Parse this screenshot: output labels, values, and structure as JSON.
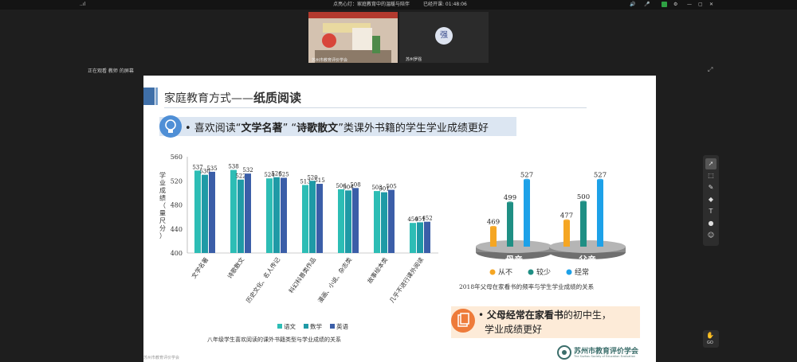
{
  "topbar": {
    "signal": "..ıl",
    "session_title": "点亮心灯：家庭教育中的温暖与陪伴",
    "elapsed_label": "已经开课: 01:48:06",
    "speaker_icon": "speaker-icon",
    "colors": {
      "bg": "#141414",
      "record": "#2ea043"
    }
  },
  "video": {
    "local_name": "苏州市教育评价学会",
    "remote_avatar_char": "强",
    "remote_name": "苏州罗强"
  },
  "share_label": "正在观看 教师 的屏幕",
  "slide": {
    "title_prefix": "家庭教育方式——",
    "title_bold": "纸质阅读",
    "bullet1": {
      "lead": "• 喜欢阅读“",
      "b1": "文学名著",
      "mid": "” “",
      "b2": "诗歌散文",
      "tail": "”类课外书籍的学生学业成绩更好"
    },
    "bar_chart_caption": "八年级学生喜欢阅读的课外书籍类型与学业成绩的关系",
    "bubbles_caption": "2018年父母在家看书的频率与学生学业成绩的关系",
    "bullet2": {
      "bold": "父母经常在家看书",
      "tail": "的初中生，",
      "line2": "学业成绩更好"
    },
    "logo_name": "苏州市教育评价学会",
    "logo_sub": "The Suzhou Society of Education Evaluation"
  },
  "chart_data": [
    {
      "type": "bar",
      "ylabel": "学业成绩（量尺分）",
      "ylim": [
        400,
        560
      ],
      "yticks": [
        400,
        440,
        480,
        520,
        560
      ],
      "categories": [
        "文学名著",
        "诗歌散文",
        "历史文化、名人传记",
        "科幻科普类作品",
        "漫画、小说、杂志类",
        "故事绘本类",
        "几乎不进行课外阅读"
      ],
      "series": [
        {
          "name": "语文",
          "color": "#2dbdb5",
          "values": [
            537,
            538,
            524,
            513,
            506,
            503,
            450
          ]
        },
        {
          "name": "数学",
          "color": "#1f9aa6",
          "values": [
            530,
            522,
            526,
            520,
            504,
            501,
            451
          ]
        },
        {
          "name": "英语",
          "color": "#3b5ea8",
          "values": [
            535,
            532,
            525,
            515,
            508,
            505,
            452
          ]
        }
      ]
    },
    {
      "type": "bar",
      "categories": [
        "母亲",
        "父亲"
      ],
      "series": [
        {
          "name": "从不",
          "color": "#f5a623",
          "values": [
            469,
            477
          ]
        },
        {
          "name": "较少",
          "color": "#1f8f84",
          "values": [
            499,
            500
          ]
        },
        {
          "name": "经常",
          "color": "#1da1e8",
          "values": [
            527,
            527
          ]
        }
      ]
    }
  ],
  "toolbar": {
    "tools": [
      "pointer-icon",
      "select-icon",
      "pen-icon",
      "eraser-icon",
      "text-icon",
      "comment-icon",
      "people-icon"
    ],
    "text_tool_glyph": "T",
    "corner_label": "GO"
  },
  "bottom_left": "苏州市教育评价学会"
}
